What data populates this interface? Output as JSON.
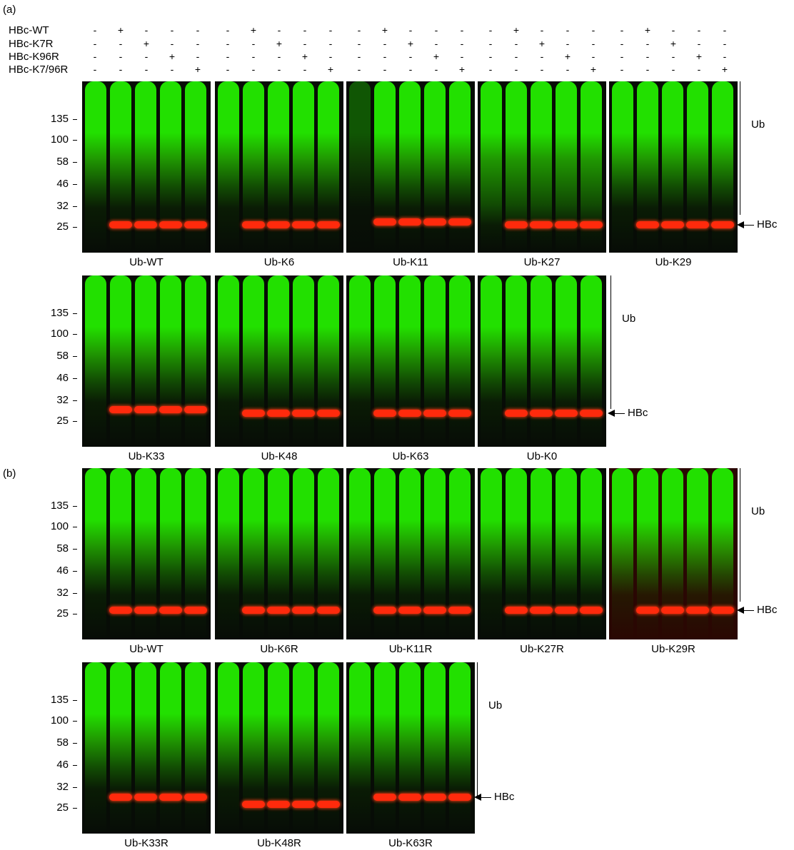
{
  "panels": {
    "a": {
      "label": "(a)"
    },
    "b": {
      "label": "(b)"
    }
  },
  "rows": {
    "labels": [
      "HBc-WT",
      "HBc-K7R",
      "HBc-K96R",
      "HBc-K7/96R"
    ],
    "signs": [
      [
        "-",
        "+",
        "-",
        "-",
        "-"
      ],
      [
        "-",
        "-",
        "+",
        "-",
        "-"
      ],
      [
        "-",
        "-",
        "-",
        "+",
        "-"
      ],
      [
        "-",
        "-",
        "-",
        "-",
        "+"
      ]
    ]
  },
  "mw_markers": [
    "135",
    "100",
    "58",
    "46",
    "32",
    "25"
  ],
  "side_labels": {
    "ub": "Ub",
    "hbc": "HBc"
  },
  "blots_a_row1": [
    "Ub-WT",
    "Ub-K6",
    "Ub-K11",
    "Ub-K27",
    "Ub-K29"
  ],
  "blots_a_row2": [
    "Ub-K33",
    "Ub-K48",
    "Ub-K63",
    "Ub-K0"
  ],
  "blots_b_row1": [
    "Ub-WT",
    "Ub-K6R",
    "Ub-K11R",
    "Ub-K27R",
    "Ub-K29R"
  ],
  "blots_b_row2": [
    "Ub-K33R",
    "Ub-K48R",
    "Ub-K63R"
  ],
  "colors": {
    "ub_signal": "#22e000",
    "hbc_signal": "#ff2a0c",
    "background": "#070c06"
  }
}
